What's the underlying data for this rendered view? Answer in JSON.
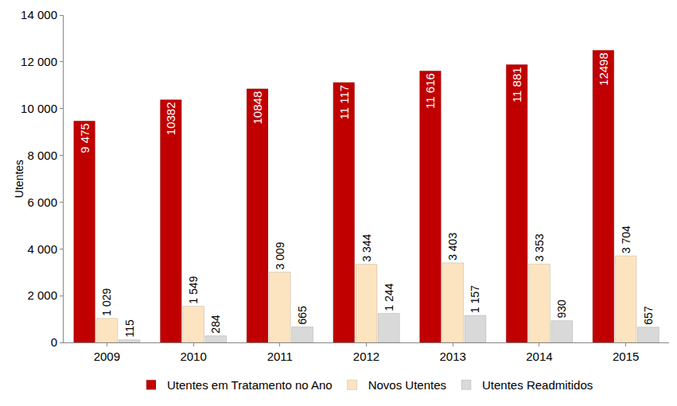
{
  "chart_data": {
    "type": "bar",
    "y_label": "Utentes",
    "categories": [
      "2009",
      "2010",
      "2011",
      "2012",
      "2013",
      "2014",
      "2015"
    ],
    "series": [
      {
        "name": "Utentes em Tratamento no Ano",
        "color": "#c00000",
        "values": [
          9475,
          10382,
          10848,
          11117,
          11616,
          11881,
          12498
        ],
        "value_labels": [
          "9 475",
          "10382",
          "10848",
          "11 117",
          "11 616",
          "11 881",
          "12498"
        ]
      },
      {
        "name": "Novos Utentes",
        "color": "#fce4c0",
        "values": [
          1029,
          1549,
          3009,
          3344,
          3403,
          3353,
          3704
        ],
        "value_labels": [
          "1 029",
          "1 549",
          "3 009",
          "3 344",
          "3 403",
          "3 353",
          "3 704"
        ]
      },
      {
        "name": "Utentes Readmitidos",
        "color": "#d9d9d9",
        "values": [
          115,
          284,
          665,
          1244,
          1157,
          930,
          657
        ],
        "value_labels": [
          "115",
          "284",
          "665",
          "1 244",
          "1 157",
          "930",
          "657"
        ]
      }
    ],
    "ylim": [
      0,
      14000
    ],
    "yticks": [
      0,
      {
        "value": 2000,
        "label": "2 000"
      },
      {
        "value": 4000,
        "label": "4 000"
      },
      {
        "value": 6000,
        "label": "6 000"
      },
      {
        "value": 8000,
        "label": "8 000"
      },
      {
        "value": 10000,
        "label": "10 000"
      },
      {
        "value": 12000,
        "label": "12 000"
      },
      {
        "value": 14000,
        "label": "14 000"
      }
    ],
    "grid": false,
    "legend": "bottom",
    "data_labels": true
  }
}
